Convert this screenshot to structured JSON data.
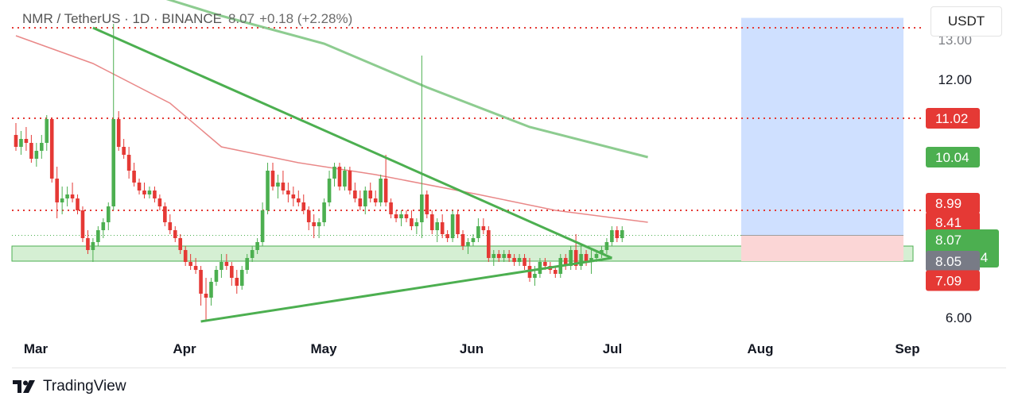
{
  "header": {
    "symbol": "NMR / TetherUS · 1D · BINANCE",
    "price": "8.07",
    "change": "+0.18 (+2.28%)"
  },
  "currency_label": "USDT",
  "brand": {
    "name": "TradingView",
    "icon": "tradingview-logo-icon"
  },
  "colors": {
    "up": "#4caf50",
    "down": "#e53935",
    "trendline": "#4caf50",
    "ma_green": "#81c784",
    "ma_red": "#e57373",
    "level_line": "#e53935",
    "target_zone": "#cfe0ff",
    "stop_zone": "#fbd6d6",
    "support_zone": "#d5efd3"
  },
  "chart_data": {
    "type": "candlestick",
    "x_axis": {
      "ticks": [
        "Mar",
        "Apr",
        "May",
        "Jun",
        "Jul",
        "Aug",
        "Sep"
      ]
    },
    "y_axis": {
      "ticks": [
        "6.00",
        "12.00"
      ],
      "range": [
        5.7,
        13.5
      ],
      "partial_top_tick": "13.00"
    },
    "levels": [
      {
        "name": "resistance-13",
        "price": 13.3
      },
      {
        "name": "resistance-11",
        "price": 11.02
      },
      {
        "name": "resistance-9",
        "price": 8.7
      }
    ],
    "price_badges": [
      {
        "label": "11.02",
        "price": 11.02,
        "color": "#e53935"
      },
      {
        "label": "10.04",
        "price": 10.04,
        "color": "#4caf50"
      },
      {
        "label": "8.99",
        "price": 8.88,
        "color": "#e53935"
      },
      {
        "label": "8.41",
        "price": 8.4,
        "color": "#e53935"
      },
      {
        "label": "8.07",
        "sub": "18:45:54",
        "price": 7.96,
        "color": "#4caf50"
      },
      {
        "label": "8.05",
        "price": 7.42,
        "color": "#787b86"
      },
      {
        "label": "7.09",
        "price": 6.93,
        "color": "#e53935"
      }
    ],
    "candles": [
      {
        "o": 10.6,
        "h": 10.9,
        "l": 10.2,
        "c": 10.3
      },
      {
        "o": 10.3,
        "h": 10.7,
        "l": 10.1,
        "c": 10.5
      },
      {
        "o": 10.5,
        "h": 10.8,
        "l": 10.2,
        "c": 10.4
      },
      {
        "o": 10.4,
        "h": 10.6,
        "l": 9.9,
        "c": 10.0
      },
      {
        "o": 10.0,
        "h": 10.4,
        "l": 9.8,
        "c": 10.2
      },
      {
        "o": 10.2,
        "h": 10.6,
        "l": 10.0,
        "c": 10.4
      },
      {
        "o": 10.4,
        "h": 11.1,
        "l": 10.2,
        "c": 11.0
      },
      {
        "o": 11.0,
        "h": 11.0,
        "l": 9.4,
        "c": 9.5
      },
      {
        "o": 9.5,
        "h": 9.8,
        "l": 8.5,
        "c": 8.9
      },
      {
        "o": 8.9,
        "h": 9.3,
        "l": 8.6,
        "c": 9.0
      },
      {
        "o": 9.0,
        "h": 9.3,
        "l": 8.8,
        "c": 9.1
      },
      {
        "o": 9.1,
        "h": 9.4,
        "l": 8.9,
        "c": 9.0
      },
      {
        "o": 9.0,
        "h": 9.1,
        "l": 8.6,
        "c": 8.7
      },
      {
        "o": 8.7,
        "h": 8.8,
        "l": 7.9,
        "c": 8.0
      },
      {
        "o": 8.0,
        "h": 8.2,
        "l": 7.6,
        "c": 7.7
      },
      {
        "o": 7.7,
        "h": 8.0,
        "l": 7.4,
        "c": 7.9
      },
      {
        "o": 7.9,
        "h": 8.3,
        "l": 7.8,
        "c": 8.2
      },
      {
        "o": 8.2,
        "h": 8.5,
        "l": 8.0,
        "c": 8.4
      },
      {
        "o": 8.4,
        "h": 8.9,
        "l": 8.2,
        "c": 8.8
      },
      {
        "o": 8.8,
        "h": 13.4,
        "l": 8.7,
        "c": 11.0
      },
      {
        "o": 11.0,
        "h": 11.2,
        "l": 10.2,
        "c": 10.3
      },
      {
        "o": 10.3,
        "h": 10.5,
        "l": 10.0,
        "c": 10.1
      },
      {
        "o": 10.1,
        "h": 10.3,
        "l": 9.5,
        "c": 9.7
      },
      {
        "o": 9.7,
        "h": 9.9,
        "l": 9.3,
        "c": 9.4
      },
      {
        "o": 9.4,
        "h": 9.5,
        "l": 9.1,
        "c": 9.2
      },
      {
        "o": 9.2,
        "h": 9.4,
        "l": 9.0,
        "c": 9.1
      },
      {
        "o": 9.1,
        "h": 9.3,
        "l": 9.0,
        "c": 9.2
      },
      {
        "o": 9.2,
        "h": 9.3,
        "l": 8.9,
        "c": 9.0
      },
      {
        "o": 9.0,
        "h": 9.1,
        "l": 8.7,
        "c": 8.8
      },
      {
        "o": 8.8,
        "h": 8.9,
        "l": 8.3,
        "c": 8.4
      },
      {
        "o": 8.4,
        "h": 8.6,
        "l": 8.1,
        "c": 8.2
      },
      {
        "o": 8.2,
        "h": 8.3,
        "l": 7.9,
        "c": 8.0
      },
      {
        "o": 8.0,
        "h": 8.1,
        "l": 7.6,
        "c": 7.7
      },
      {
        "o": 7.7,
        "h": 7.8,
        "l": 7.3,
        "c": 7.4
      },
      {
        "o": 7.4,
        "h": 7.6,
        "l": 7.2,
        "c": 7.3
      },
      {
        "o": 7.3,
        "h": 7.5,
        "l": 7.1,
        "c": 7.2
      },
      {
        "o": 7.2,
        "h": 7.3,
        "l": 6.3,
        "c": 6.6
      },
      {
        "o": 6.6,
        "h": 7.0,
        "l": 5.9,
        "c": 6.5
      },
      {
        "o": 6.5,
        "h": 7.0,
        "l": 6.3,
        "c": 6.9
      },
      {
        "o": 6.9,
        "h": 7.3,
        "l": 6.8,
        "c": 7.2
      },
      {
        "o": 7.2,
        "h": 7.6,
        "l": 7.0,
        "c": 7.4
      },
      {
        "o": 7.4,
        "h": 7.6,
        "l": 7.2,
        "c": 7.3
      },
      {
        "o": 7.3,
        "h": 7.4,
        "l": 6.8,
        "c": 7.0
      },
      {
        "o": 7.0,
        "h": 7.2,
        "l": 6.6,
        "c": 6.8
      },
      {
        "o": 6.8,
        "h": 7.3,
        "l": 6.7,
        "c": 7.2
      },
      {
        "o": 7.2,
        "h": 7.6,
        "l": 7.1,
        "c": 7.5
      },
      {
        "o": 7.5,
        "h": 7.8,
        "l": 7.4,
        "c": 7.7
      },
      {
        "o": 7.7,
        "h": 8.0,
        "l": 7.6,
        "c": 7.9
      },
      {
        "o": 7.9,
        "h": 8.9,
        "l": 7.8,
        "c": 8.7
      },
      {
        "o": 8.7,
        "h": 9.9,
        "l": 8.6,
        "c": 9.7
      },
      {
        "o": 9.7,
        "h": 9.9,
        "l": 9.2,
        "c": 9.3
      },
      {
        "o": 9.3,
        "h": 9.6,
        "l": 9.0,
        "c": 9.4
      },
      {
        "o": 9.4,
        "h": 9.7,
        "l": 9.1,
        "c": 9.2
      },
      {
        "o": 9.2,
        "h": 9.4,
        "l": 8.9,
        "c": 9.1
      },
      {
        "o": 9.1,
        "h": 9.3,
        "l": 8.8,
        "c": 9.0
      },
      {
        "o": 9.0,
        "h": 9.2,
        "l": 8.8,
        "c": 8.9
      },
      {
        "o": 8.9,
        "h": 9.1,
        "l": 8.6,
        "c": 8.7
      },
      {
        "o": 8.7,
        "h": 8.8,
        "l": 8.2,
        "c": 8.4
      },
      {
        "o": 8.4,
        "h": 8.6,
        "l": 8.0,
        "c": 8.3
      },
      {
        "o": 8.3,
        "h": 8.5,
        "l": 8.0,
        "c": 8.4
      },
      {
        "o": 8.4,
        "h": 9.0,
        "l": 8.3,
        "c": 8.9
      },
      {
        "o": 8.9,
        "h": 9.7,
        "l": 8.8,
        "c": 9.5
      },
      {
        "o": 9.5,
        "h": 9.9,
        "l": 9.3,
        "c": 9.8
      },
      {
        "o": 9.8,
        "h": 9.9,
        "l": 9.2,
        "c": 9.3
      },
      {
        "o": 9.3,
        "h": 9.8,
        "l": 9.2,
        "c": 9.7
      },
      {
        "o": 9.7,
        "h": 9.8,
        "l": 9.1,
        "c": 9.2
      },
      {
        "o": 9.2,
        "h": 9.4,
        "l": 8.9,
        "c": 9.0
      },
      {
        "o": 9.0,
        "h": 9.2,
        "l": 8.7,
        "c": 8.8
      },
      {
        "o": 8.8,
        "h": 9.3,
        "l": 8.6,
        "c": 9.2
      },
      {
        "o": 9.2,
        "h": 9.4,
        "l": 8.9,
        "c": 9.0
      },
      {
        "o": 9.0,
        "h": 9.2,
        "l": 8.8,
        "c": 8.9
      },
      {
        "o": 8.9,
        "h": 9.6,
        "l": 8.8,
        "c": 9.5
      },
      {
        "o": 9.5,
        "h": 10.1,
        "l": 8.8,
        "c": 8.9
      },
      {
        "o": 8.9,
        "h": 9.0,
        "l": 8.5,
        "c": 8.6
      },
      {
        "o": 8.6,
        "h": 8.7,
        "l": 8.4,
        "c": 8.5
      },
      {
        "o": 8.5,
        "h": 8.7,
        "l": 8.3,
        "c": 8.6
      },
      {
        "o": 8.6,
        "h": 8.7,
        "l": 8.4,
        "c": 8.5
      },
      {
        "o": 8.5,
        "h": 8.7,
        "l": 8.2,
        "c": 8.3
      },
      {
        "o": 8.3,
        "h": 8.5,
        "l": 8.1,
        "c": 8.4
      },
      {
        "o": 8.4,
        "h": 12.6,
        "l": 8.0,
        "c": 9.1
      },
      {
        "o": 9.1,
        "h": 9.2,
        "l": 8.5,
        "c": 8.6
      },
      {
        "o": 8.6,
        "h": 8.7,
        "l": 8.1,
        "c": 8.2
      },
      {
        "o": 8.2,
        "h": 8.5,
        "l": 7.9,
        "c": 8.4
      },
      {
        "o": 8.4,
        "h": 8.6,
        "l": 8.0,
        "c": 8.1
      },
      {
        "o": 8.1,
        "h": 8.2,
        "l": 7.9,
        "c": 8.0
      },
      {
        "o": 8.0,
        "h": 8.7,
        "l": 7.9,
        "c": 8.6
      },
      {
        "o": 8.6,
        "h": 8.7,
        "l": 8.0,
        "c": 8.1
      },
      {
        "o": 8.1,
        "h": 8.2,
        "l": 7.7,
        "c": 7.8
      },
      {
        "o": 7.8,
        "h": 8.0,
        "l": 7.6,
        "c": 7.9
      },
      {
        "o": 7.9,
        "h": 8.1,
        "l": 7.8,
        "c": 8.0
      },
      {
        "o": 8.0,
        "h": 8.5,
        "l": 7.9,
        "c": 8.3
      },
      {
        "o": 8.3,
        "h": 8.5,
        "l": 8.1,
        "c": 8.2
      },
      {
        "o": 8.2,
        "h": 8.3,
        "l": 7.4,
        "c": 7.5
      },
      {
        "o": 7.5,
        "h": 7.7,
        "l": 7.3,
        "c": 7.6
      },
      {
        "o": 7.6,
        "h": 7.7,
        "l": 7.4,
        "c": 7.5
      },
      {
        "o": 7.5,
        "h": 7.7,
        "l": 7.4,
        "c": 7.6
      },
      {
        "o": 7.6,
        "h": 7.7,
        "l": 7.4,
        "c": 7.5
      },
      {
        "o": 7.5,
        "h": 7.6,
        "l": 7.3,
        "c": 7.4
      },
      {
        "o": 7.4,
        "h": 7.6,
        "l": 7.3,
        "c": 7.5
      },
      {
        "o": 7.5,
        "h": 7.6,
        "l": 7.2,
        "c": 7.3
      },
      {
        "o": 7.3,
        "h": 7.5,
        "l": 6.9,
        "c": 7.0
      },
      {
        "o": 7.0,
        "h": 7.3,
        "l": 6.8,
        "c": 7.1
      },
      {
        "o": 7.1,
        "h": 7.5,
        "l": 7.0,
        "c": 7.4
      },
      {
        "o": 7.4,
        "h": 7.5,
        "l": 7.2,
        "c": 7.3
      },
      {
        "o": 7.3,
        "h": 7.4,
        "l": 7.1,
        "c": 7.2
      },
      {
        "o": 7.2,
        "h": 7.3,
        "l": 7.0,
        "c": 7.1
      },
      {
        "o": 7.1,
        "h": 7.6,
        "l": 7.0,
        "c": 7.5
      },
      {
        "o": 7.5,
        "h": 7.6,
        "l": 7.2,
        "c": 7.3
      },
      {
        "o": 7.3,
        "h": 7.8,
        "l": 7.2,
        "c": 7.7
      },
      {
        "o": 7.7,
        "h": 8.1,
        "l": 7.2,
        "c": 7.3
      },
      {
        "o": 7.3,
        "h": 7.8,
        "l": 7.2,
        "c": 7.6
      },
      {
        "o": 7.6,
        "h": 7.7,
        "l": 7.3,
        "c": 7.4
      },
      {
        "o": 7.4,
        "h": 7.7,
        "l": 7.1,
        "c": 7.5
      },
      {
        "o": 7.5,
        "h": 7.7,
        "l": 7.4,
        "c": 7.6
      },
      {
        "o": 7.6,
        "h": 7.8,
        "l": 7.5,
        "c": 7.7
      },
      {
        "o": 7.7,
        "h": 8.0,
        "l": 7.6,
        "c": 7.9
      },
      {
        "o": 7.9,
        "h": 8.3,
        "l": 7.8,
        "c": 8.2
      },
      {
        "o": 8.2,
        "h": 8.3,
        "l": 7.9,
        "c": 8.0
      },
      {
        "o": 8.0,
        "h": 8.3,
        "l": 7.9,
        "c": 8.2
      }
    ],
    "trendlines": [
      {
        "name": "descending-trendline",
        "from": [
          15,
          13.3
        ],
        "to": [
          116,
          7.5
        ]
      },
      {
        "name": "ascending-trendline",
        "from": [
          36,
          5.9
        ],
        "to": [
          116,
          7.5
        ]
      }
    ],
    "moving_averages": [
      {
        "name": "ma-green",
        "points": [
          [
            20,
            14.4
          ],
          [
            40,
            13.6
          ],
          [
            60,
            12.9
          ],
          [
            80,
            11.8
          ],
          [
            100,
            10.8
          ],
          [
            123,
            10.04
          ]
        ]
      },
      {
        "name": "ma-red",
        "points": [
          [
            0,
            13.1
          ],
          [
            15,
            12.4
          ],
          [
            30,
            11.4
          ],
          [
            40,
            10.3
          ],
          [
            55,
            9.9
          ],
          [
            70,
            9.6
          ],
          [
            90,
            9.1
          ],
          [
            105,
            8.7
          ],
          [
            123,
            8.4
          ]
        ]
      }
    ],
    "support_zone": [
      7.42,
      7.8
    ],
    "position_tool": {
      "entry": 8.07,
      "target": 13.55,
      "stop": 7.42
    }
  }
}
